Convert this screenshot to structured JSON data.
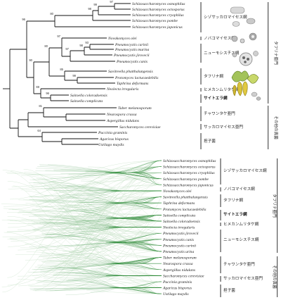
{
  "top_tree": {
    "taxa": [
      "Schizosaccharomyces osmophilus",
      "Schizosaccharomyces octosporus",
      "Schizosaccharomyces cryophilus",
      "Schizosaccharomyces pombe",
      "Schizosaccharomyces japonicus",
      "Novakomyces olei",
      "Pneumocystis carinii",
      "Pneumocystis murina",
      "Pneumocystis jirovecii",
      "Pneumocystis canis",
      "Savitreella phatthalungensis",
      "Protomyces lactucaedebilis",
      "Taphrina deformans",
      "Neolecta irregularis",
      "Saitoella coloradoensis",
      "Saitoella complicata",
      "Tuber melanosporum",
      "Neurospora crassa",
      "Aspergillus nidulans",
      "Saccharomyces cerevisiae",
      "Puccinia graminis",
      "Agaricus bisporus",
      "Ustilago maydis"
    ],
    "bootstrap": [
      "97",
      "99",
      "98",
      "80",
      "93",
      "98",
      "97",
      "97",
      "99",
      "85",
      "80",
      "69",
      "96",
      "90",
      "96",
      "81",
      "64"
    ],
    "clades": [
      "シゾサッカロマイセス綱",
      "ノバコマイセス綱",
      "ニューモシスチス綱",
      "タフリナ綱",
      "ヒメカンムリタケ綱",
      "サイトエラ綱",
      "チャワンタケ亜門",
      "サッカロマイセス亜門",
      "担子菌"
    ],
    "groups": [
      "タフリナ亜門",
      "その他の真菌"
    ]
  },
  "bottom_tree": {
    "taxa": [
      "Schizosaccharomyces osmophilus",
      "Schizosaccharomyces octosporus",
      "Schizosaccharomyces cryophilus",
      "Schizosaccharomyces pombe",
      "Schizosaccharomyces japonicus",
      "Novakomyces olei",
      "Savitreella phatthalungensis",
      "Taphrina deformans",
      "Protomyces lactucaedebilis",
      "Saitoella complicata",
      "Saitoella coloradoensis",
      "Neolecta irregularis",
      "Pneumocystis jirovecii",
      "Pneumocystis canis",
      "Pneumocystis carinii",
      "Pneumocystis urina",
      "Tuber melanosporum",
      "Neurospora crassa",
      "Aspergillus nidulans",
      "Saccharomyces cerevisiae",
      "Puccinia graminis",
      "Agaricus bisporus",
      "Ustilago maydis"
    ],
    "clades": [
      "シゾサッカロマイセス綱",
      "ノバコマイセス綱",
      "タフリナ綱",
      "サイトエラ綱",
      "ヒメカンムリタケ綱",
      "ニューモシスチス綱",
      "チャワンタケ亜門",
      "サッカロマイセス亜門",
      "担子菌"
    ],
    "groups": [
      "タフリナ亜門",
      "その他の真菌"
    ]
  },
  "colors": {
    "tree_line": "#111111",
    "cloud_green": "#2f8a3a",
    "cloud_light": "#cfe6cf",
    "group_bar": "#555555"
  }
}
